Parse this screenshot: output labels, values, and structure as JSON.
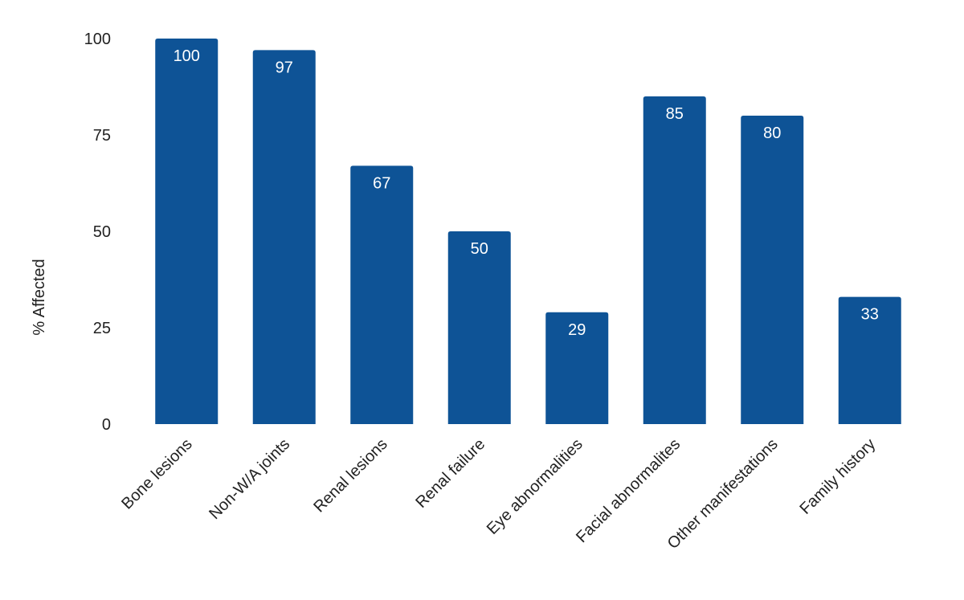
{
  "chart_data": {
    "type": "bar",
    "title": "",
    "xlabel": "",
    "ylabel": "% Affected",
    "ylim": [
      0,
      100
    ],
    "yticks": [
      0,
      25,
      50,
      75,
      100
    ],
    "grid": false,
    "legend": "none",
    "bar_color": "#0E5396",
    "categories": [
      "Bone lesions",
      "Non-W/A joints",
      "Renal lesions",
      "Renal failure",
      "Eye abnormalities",
      "Facial abnormalites",
      "Other manifestations",
      "Family history"
    ],
    "values": [
      100,
      97,
      67,
      50,
      29,
      85,
      80,
      33
    ],
    "data_labels": [
      "100",
      "97",
      "67",
      "50",
      "29",
      "85",
      "80",
      "33"
    ]
  }
}
